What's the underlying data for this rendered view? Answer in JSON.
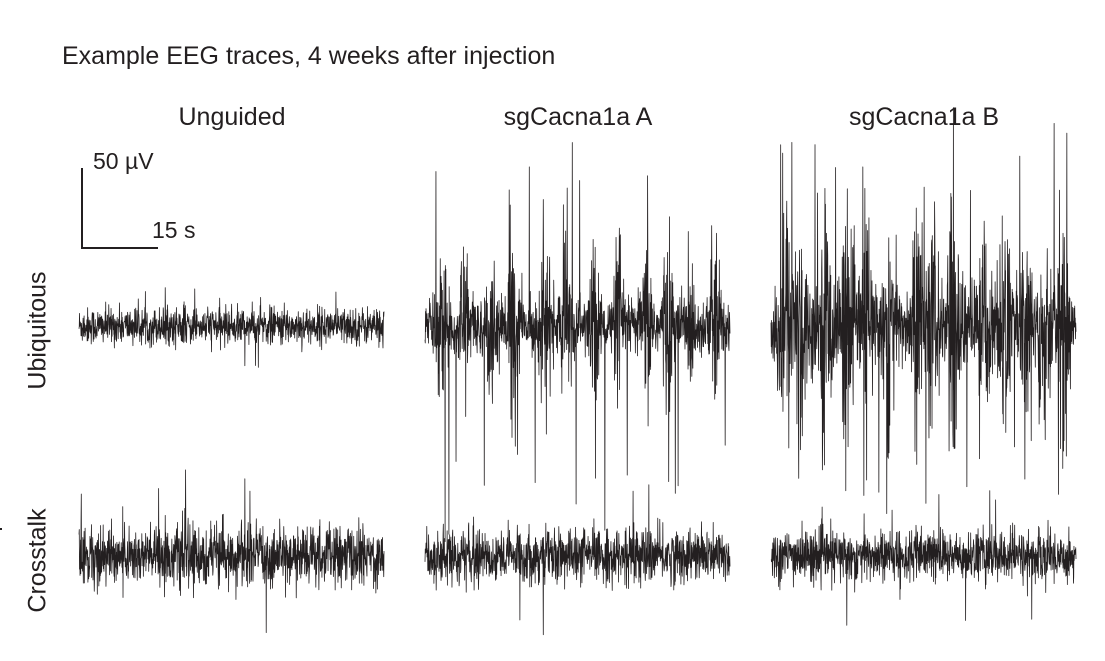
{
  "chart_data": {
    "type": "line",
    "title": "Example EEG traces, 4 weeks after injection",
    "columns": [
      "Unguided",
      "sgCacna1a A",
      "sgCacna1a B"
    ],
    "rows": [
      "Ubiquitous",
      "Crosstalk"
    ],
    "scale_bar": {
      "voltage_label": "50 µV",
      "time_label": "15 s",
      "voltage_uV": 50,
      "time_s": 15
    },
    "panels": [
      {
        "row": "Ubiquitous",
        "column": "Unguided",
        "noise_amplitude_uV": 17,
        "spike_peak_uV": 30,
        "spike_bursts": 0
      },
      {
        "row": "Ubiquitous",
        "column": "sgCacna1a A",
        "noise_amplitude_uV": 25,
        "spike_peak_uV": 135,
        "spike_bursts": 12
      },
      {
        "row": "Ubiquitous",
        "column": "sgCacna1a B",
        "noise_amplitude_uV": 40,
        "spike_peak_uV": 130,
        "spike_bursts": 14
      },
      {
        "row": "Crosstalk",
        "column": "Unguided",
        "noise_amplitude_uV": 28,
        "spike_peak_uV": 55,
        "spike_bursts": 0
      },
      {
        "row": "Crosstalk",
        "column": "sgCacna1a A",
        "noise_amplitude_uV": 25,
        "spike_peak_uV": 55,
        "spike_bursts": 0
      },
      {
        "row": "Crosstalk",
        "column": "sgCacna1a B",
        "noise_amplitude_uV": 24,
        "spike_peak_uV": 50,
        "spike_bursts": 0
      }
    ],
    "trace_duration_s": 60,
    "line_color": "#231f20"
  }
}
